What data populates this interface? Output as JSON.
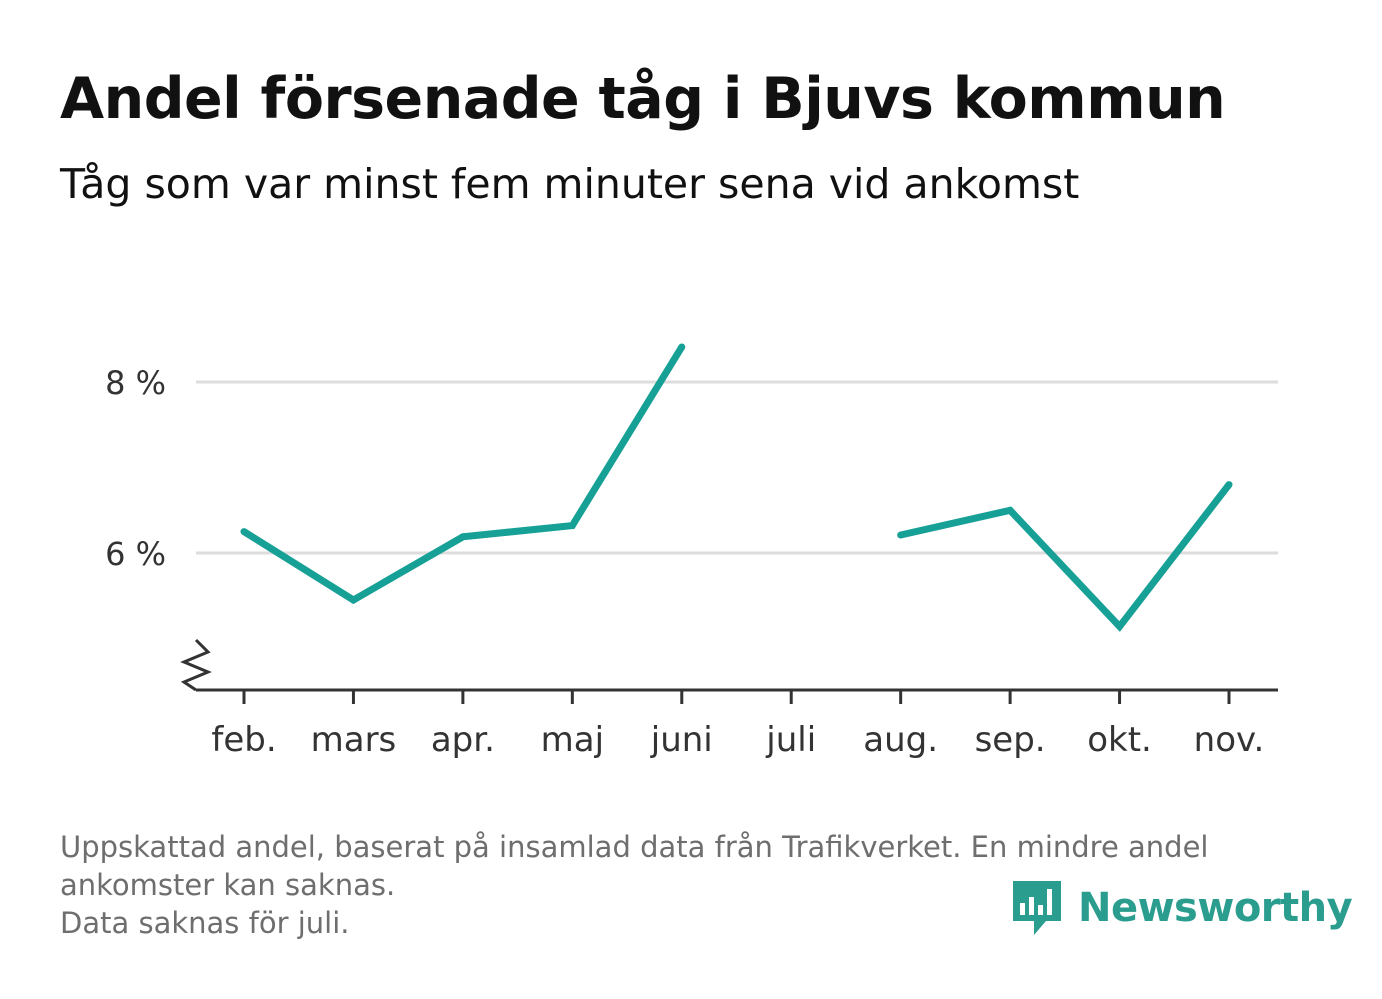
{
  "header": {
    "title": "Andel försenade tåg i Bjuvs kommun",
    "subtitle": "Tåg som var minst fem minuter sena vid ankomst"
  },
  "chart_data": {
    "type": "line",
    "title": "Andel försenade tåg i Bjuvs kommun",
    "subtitle": "Tåg som var minst fem minuter sena vid ankomst",
    "xlabel": "",
    "ylabel": "",
    "categories": [
      "feb.",
      "mars",
      "apr.",
      "maj",
      "juni",
      "juli",
      "aug.",
      "sep.",
      "okt.",
      "nov."
    ],
    "series": [
      {
        "values": [
          6.25,
          5.45,
          6.19,
          6.32,
          8.41,
          null,
          6.21,
          6.5,
          5.14,
          6.8
        ]
      }
    ],
    "y_ticks": [
      6,
      8
    ],
    "y_tick_labels": [
      "6 %",
      "8 %"
    ],
    "ylim": [
      4.4,
      9.2
    ],
    "y_axis_broken": true,
    "grid": true,
    "line_color": "#16a096"
  },
  "footer": {
    "note_line1": "Uppskattad andel, baserat på insamlad data från Trafikverket. En mindre andel",
    "note_line2": "ankomster kan saknas.",
    "note_line3": "Data saknas för juli."
  },
  "brand": {
    "name": "Newsworthy",
    "icon": "newsworthy-logo-icon",
    "color": "#2a9d8f"
  }
}
